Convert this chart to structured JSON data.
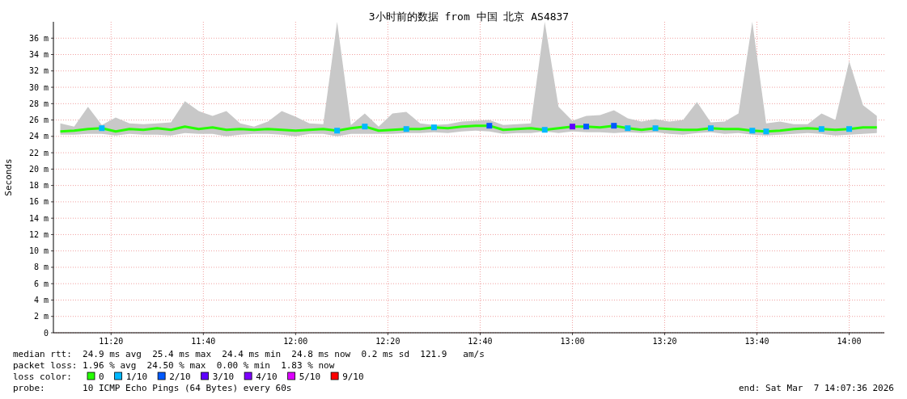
{
  "chart_data": {
    "type": "line",
    "title": "3小时前的数据 from 中国 北京 AS4837",
    "ylabel": "Seconds",
    "x": [
      11.15,
      11.2,
      11.25,
      11.3,
      11.35,
      11.4,
      11.45,
      11.5,
      11.55,
      11.6,
      11.65,
      11.7,
      11.75,
      11.8,
      11.85,
      11.9,
      11.95,
      12.0,
      12.05,
      12.1,
      12.15,
      12.2,
      12.25,
      12.3,
      12.35,
      12.4,
      12.45,
      12.5,
      12.55,
      12.6,
      12.65,
      12.7,
      12.75,
      12.8,
      12.85,
      12.9,
      12.95,
      13.0,
      13.05,
      13.1,
      13.15,
      13.2,
      13.25,
      13.3,
      13.35,
      13.4,
      13.45,
      13.5,
      13.55,
      13.6,
      13.65,
      13.7,
      13.75,
      13.8,
      13.85,
      13.9,
      13.95,
      14.0,
      14.05,
      14.1
    ],
    "xlim": [
      11.125,
      14.127
    ],
    "xticks": [
      {
        "value": 11.3333,
        "label": "11:20"
      },
      {
        "value": 11.6667,
        "label": "11:40"
      },
      {
        "value": 12,
        "label": "12:00"
      },
      {
        "value": 12.3333,
        "label": "12:20"
      },
      {
        "value": 12.6667,
        "label": "12:40"
      },
      {
        "value": 13,
        "label": "13:00"
      },
      {
        "value": 13.3333,
        "label": "13:20"
      },
      {
        "value": 13.6667,
        "label": "13:40"
      },
      {
        "value": 14,
        "label": "14:00"
      }
    ],
    "ylim": [
      0,
      38
    ],
    "yticks": [
      0,
      {
        "value": 2,
        "label": "2 m"
      },
      {
        "value": 4,
        "label": "4 m"
      },
      {
        "value": 6,
        "label": "6 m"
      },
      {
        "value": 8,
        "label": "8 m"
      },
      {
        "value": 10,
        "label": "10 m"
      },
      {
        "value": 12,
        "label": "12 m"
      },
      {
        "value": 14,
        "label": "14 m"
      },
      {
        "value": 16,
        "label": "16 m"
      },
      {
        "value": 18,
        "label": "18 m"
      },
      {
        "value": 20,
        "label": "20 m"
      },
      {
        "value": 22,
        "label": "22 m"
      },
      {
        "value": 24,
        "label": "24 m"
      },
      {
        "value": 26,
        "label": "26 m"
      },
      {
        "value": 28,
        "label": "28 m"
      },
      {
        "value": 30,
        "label": "30 m"
      },
      {
        "value": 32,
        "label": "32 m"
      },
      {
        "value": 34,
        "label": "34 m"
      },
      {
        "value": 36,
        "label": "36 m"
      }
    ],
    "grid": true,
    "legend": "bottom",
    "legend_title": "loss color:",
    "series": [
      {
        "name": "0",
        "color": "#26ff00",
        "values": [
          24.6,
          24.7,
          24.9,
          25.0,
          24.6,
          24.9,
          24.8,
          25.0,
          24.8,
          25.2,
          24.9,
          25.1,
          24.8,
          24.9,
          24.8,
          24.9,
          24.8,
          24.7,
          24.8,
          24.9,
          24.7,
          25.0,
          25.2,
          24.7,
          24.8,
          24.9,
          24.9,
          25.1,
          25.0,
          25.2,
          25.3,
          25.3,
          24.8,
          24.9,
          25.0,
          24.8,
          25.0,
          25.2,
          25.2,
          25.1,
          25.3,
          25.0,
          24.8,
          25.0,
          24.9,
          24.8,
          24.8,
          25.0,
          24.9,
          24.9,
          24.7,
          24.6,
          24.7,
          24.9,
          25.0,
          24.9,
          24.8,
          24.9,
          25.1,
          25.1
        ],
        "lower": [
          24.2,
          24.2,
          24.3,
          24.3,
          24.1,
          24.3,
          24.2,
          24.2,
          24.1,
          24.4,
          24.3,
          24.3,
          24.0,
          24.2,
          24.3,
          24.3,
          24.2,
          24.0,
          24.3,
          24.3,
          24.0,
          24.3,
          24.3,
          24.3,
          24.3,
          24.4,
          24.4,
          24.5,
          24.4,
          24.6,
          24.7,
          24.6,
          24.3,
          24.4,
          24.4,
          24.6,
          24.4,
          24.6,
          24.5,
          24.5,
          24.4,
          24.5,
          24.4,
          24.5,
          24.3,
          24.2,
          24.4,
          24.5,
          24.3,
          24.4,
          24.2,
          24.1,
          24.2,
          24.3,
          24.4,
          24.3,
          24.1,
          24.2,
          24.3,
          24.4
        ],
        "upper": [
          25.6,
          25.2,
          27.6,
          25.4,
          26.3,
          25.6,
          25.5,
          25.6,
          25.7,
          28.3,
          27.1,
          26.5,
          27.1,
          25.6,
          25.2,
          25.8,
          27.1,
          26.4,
          25.6,
          25.5,
          38.0,
          25.4,
          26.8,
          25.2,
          26.8,
          27.0,
          25.6,
          25.4,
          25.5,
          25.8,
          25.9,
          26.0,
          25.4,
          25.5,
          25.6,
          38.0,
          27.6,
          25.9,
          26.5,
          26.6,
          27.2,
          26.2,
          25.8,
          26.1,
          25.8,
          26.0,
          28.2,
          25.7,
          25.8,
          26.8,
          38.0,
          25.6,
          25.8,
          25.5,
          25.5,
          26.8,
          26.0,
          33.2,
          27.8,
          26.5
        ]
      },
      {
        "name": "1/10",
        "type": "scatter",
        "marker": "square",
        "color": "#00b8ff",
        "values": [
          null,
          null,
          null,
          25.0,
          null,
          null,
          null,
          null,
          null,
          null,
          null,
          null,
          null,
          null,
          null,
          null,
          null,
          null,
          null,
          null,
          24.7,
          null,
          25.2,
          null,
          null,
          24.9,
          null,
          25.1,
          null,
          null,
          null,
          null,
          null,
          null,
          null,
          24.8,
          null,
          null,
          null,
          null,
          null,
          25.0,
          null,
          25.0,
          null,
          null,
          null,
          25.0,
          null,
          null,
          24.7,
          24.6,
          null,
          null,
          null,
          24.9,
          null,
          24.9,
          null,
          null
        ]
      },
      {
        "name": "2/10",
        "type": "scatter",
        "marker": "square",
        "color": "#0059ff",
        "values": [
          null,
          null,
          null,
          null,
          null,
          null,
          null,
          null,
          null,
          null,
          null,
          null,
          null,
          null,
          null,
          null,
          null,
          null,
          null,
          null,
          null,
          null,
          null,
          null,
          null,
          null,
          null,
          null,
          null,
          null,
          null,
          25.3,
          null,
          null,
          null,
          null,
          null,
          null,
          25.2,
          null,
          25.3,
          null,
          null,
          null,
          null,
          null,
          null,
          null,
          null,
          null,
          null,
          null,
          null,
          null,
          null,
          null,
          null,
          null,
          null,
          null
        ]
      },
      {
        "name": "3/10",
        "type": "scatter",
        "marker": "square",
        "color": "#5e00ff",
        "values": [
          null,
          null,
          null,
          null,
          null,
          null,
          null,
          null,
          null,
          null,
          null,
          null,
          null,
          null,
          null,
          null,
          null,
          null,
          null,
          null,
          null,
          null,
          null,
          null,
          null,
          null,
          null,
          null,
          null,
          null,
          null,
          null,
          null,
          null,
          null,
          null,
          null,
          25.2,
          null,
          null,
          null,
          null,
          null,
          null,
          null,
          null,
          null,
          null,
          null,
          null,
          null,
          null,
          null,
          null,
          null,
          null,
          null,
          null,
          null,
          null
        ]
      },
      {
        "name": "4/10",
        "type": "scatter",
        "color": "#7e00ff",
        "values": [
          null,
          null,
          null,
          null,
          null,
          null,
          null,
          null,
          null,
          null,
          null,
          null,
          null,
          null,
          null,
          null,
          null,
          null,
          null,
          null,
          null,
          null,
          null,
          null,
          null,
          null,
          null,
          null,
          null,
          null,
          null,
          null,
          null,
          null,
          null,
          null,
          null,
          null,
          null,
          null,
          null,
          null,
          null,
          null,
          null,
          null,
          null,
          null,
          null,
          null,
          null,
          null,
          null,
          null,
          null,
          null,
          null,
          null,
          null,
          null
        ]
      },
      {
        "name": "5/10",
        "type": "scatter",
        "color": "#dd00ff",
        "values": [
          null,
          null,
          null,
          null,
          null,
          null,
          null,
          null,
          null,
          null,
          null,
          null,
          null,
          null,
          null,
          null,
          null,
          null,
          null,
          null,
          null,
          null,
          null,
          null,
          null,
          null,
          null,
          null,
          null,
          null,
          null,
          null,
          null,
          null,
          null,
          null,
          null,
          null,
          null,
          null,
          null,
          null,
          null,
          null,
          null,
          null,
          null,
          null,
          null,
          null,
          null,
          null,
          null,
          null,
          null,
          null,
          null,
          null,
          null,
          null
        ]
      },
      {
        "name": "9/10",
        "type": "scatter",
        "color": "#ff0000",
        "values": [
          null,
          null,
          null,
          null,
          null,
          null,
          null,
          null,
          null,
          null,
          null,
          null,
          null,
          null,
          null,
          null,
          null,
          null,
          null,
          null,
          null,
          null,
          null,
          null,
          null,
          null,
          null,
          null,
          null,
          null,
          null,
          null,
          null,
          null,
          null,
          null,
          null,
          null,
          null,
          null,
          null,
          null,
          null,
          null,
          null,
          null,
          null,
          null,
          null,
          null,
          null,
          null,
          null,
          null,
          null,
          null,
          null,
          null,
          null,
          null
        ]
      }
    ],
    "annotations": [
      "median rtt:  24.9 ms avg  25.4 ms max  24.4 ms min  24.8 ms now  0.2 ms sd  121.9   am/s",
      "packet loss: 1.96 % avg  24.50 % max  0.00 % min  1.83 % now",
      "probe:       10 ICMP Echo Pings (64 Bytes) every 60s",
      "end: Sat Mar  7 14:07:36 2026"
    ]
  }
}
